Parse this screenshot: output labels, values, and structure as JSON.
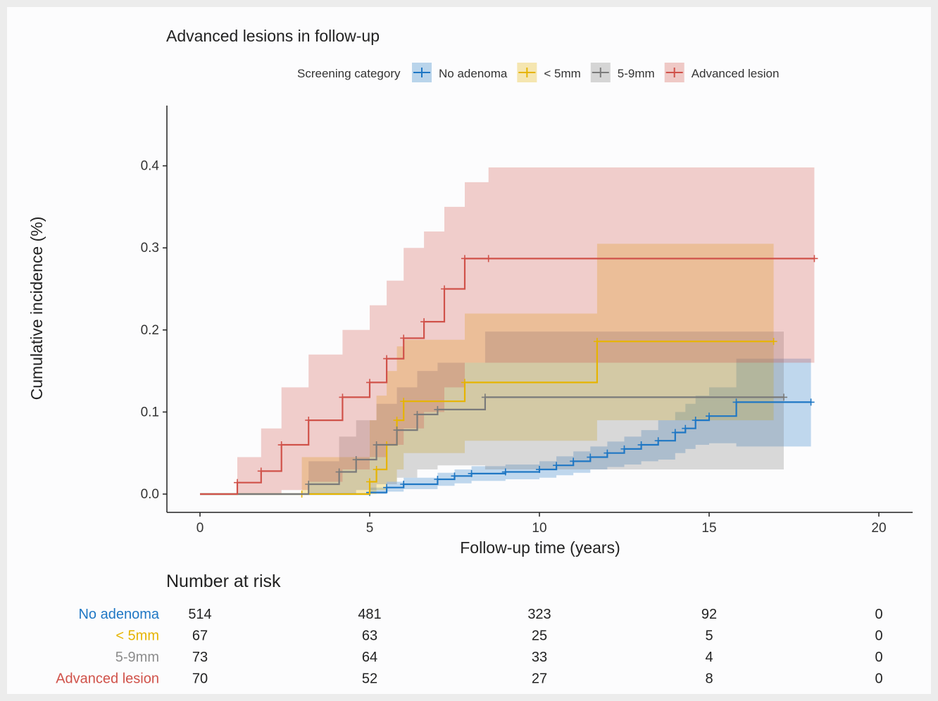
{
  "chart_data": {
    "type": "line",
    "title": "Advanced lesions in follow-up",
    "xlabel": "Follow-up time (years)",
    "ylabel": "Cumulative incidence (%)",
    "xlim": [
      0,
      20
    ],
    "ylim": [
      0,
      0.45
    ],
    "x_ticks": [
      0,
      5,
      10,
      15,
      20
    ],
    "y_ticks": [
      0.0,
      0.1,
      0.2,
      0.3,
      0.4
    ],
    "x_tick_labels": [
      "0",
      "5",
      "10",
      "15",
      "20"
    ],
    "y_tick_labels": [
      "0.0",
      "0.1",
      "0.2",
      "0.3",
      "0.4"
    ],
    "grid": false,
    "legend_title": "Screening category",
    "legend_position": "top",
    "series": [
      {
        "name": "No adenoma",
        "color": "#1f77c4",
        "x": [
          0,
          5.0,
          5.5,
          6.0,
          7.0,
          7.5,
          8.0,
          9.0,
          10.0,
          10.5,
          11.0,
          11.5,
          12.0,
          12.5,
          13.0,
          13.5,
          14.0,
          14.3,
          14.6,
          15.0,
          15.8,
          18.0
        ],
        "y": [
          0,
          0.002,
          0.008,
          0.012,
          0.018,
          0.022,
          0.025,
          0.027,
          0.03,
          0.035,
          0.04,
          0.045,
          0.05,
          0.055,
          0.06,
          0.065,
          0.075,
          0.08,
          0.09,
          0.095,
          0.112,
          0.112
        ],
        "ci_upper": [
          0,
          0.008,
          0.015,
          0.02,
          0.026,
          0.03,
          0.034,
          0.036,
          0.04,
          0.046,
          0.052,
          0.058,
          0.064,
          0.07,
          0.078,
          0.09,
          0.1,
          0.11,
          0.12,
          0.13,
          0.165,
          0.165
        ],
        "ci_lower": [
          0,
          0,
          0.003,
          0.006,
          0.01,
          0.013,
          0.016,
          0.018,
          0.02,
          0.023,
          0.026,
          0.03,
          0.033,
          0.036,
          0.04,
          0.042,
          0.05,
          0.055,
          0.06,
          0.062,
          0.058,
          0.058
        ]
      },
      {
        "name": "< 5mm",
        "color": "#e6b400",
        "x": [
          0,
          3.0,
          5.0,
          5.2,
          5.5,
          5.8,
          6.0,
          7.8,
          11.7,
          16.9
        ],
        "y": [
          0,
          0.0,
          0.015,
          0.03,
          0.06,
          0.09,
          0.113,
          0.136,
          0.186,
          0.186
        ],
        "ci_upper": [
          0,
          0.045,
          0.09,
          0.12,
          0.15,
          0.18,
          0.188,
          0.22,
          0.305,
          0.305
        ],
        "ci_lower": [
          0,
          0.0,
          0.0,
          0.005,
          0.015,
          0.03,
          0.05,
          0.065,
          0.09,
          0.09
        ]
      },
      {
        "name": "5-9mm",
        "color": "#7a7a7a",
        "x": [
          0,
          3.2,
          4.1,
          4.6,
          5.2,
          5.8,
          6.4,
          7.0,
          8.4,
          17.2
        ],
        "y": [
          0,
          0.012,
          0.027,
          0.042,
          0.06,
          0.078,
          0.097,
          0.103,
          0.118,
          0.118
        ],
        "ci_upper": [
          0,
          0.04,
          0.07,
          0.09,
          0.11,
          0.13,
          0.15,
          0.16,
          0.198,
          0.198
        ],
        "ci_lower": [
          0,
          0.0,
          0.0,
          0.005,
          0.012,
          0.02,
          0.03,
          0.035,
          0.03,
          0.03
        ]
      },
      {
        "name": "Advanced lesion",
        "color": "#d0524a",
        "x": [
          0,
          1.1,
          1.8,
          2.4,
          3.2,
          4.2,
          5.0,
          5.5,
          6.0,
          6.6,
          7.2,
          7.8,
          8.5,
          18.1
        ],
        "y": [
          0,
          0.014,
          0.028,
          0.06,
          0.09,
          0.118,
          0.136,
          0.165,
          0.19,
          0.21,
          0.25,
          0.287,
          0.287,
          0.287
        ],
        "ci_upper": [
          0,
          0.045,
          0.08,
          0.13,
          0.17,
          0.2,
          0.23,
          0.26,
          0.3,
          0.32,
          0.35,
          0.38,
          0.398,
          0.398
        ],
        "ci_lower": [
          0,
          0.0,
          0.0,
          0.005,
          0.015,
          0.03,
          0.045,
          0.06,
          0.08,
          0.1,
          0.13,
          0.16,
          0.16,
          0.16
        ]
      }
    ],
    "risk_table": {
      "title": "Number at risk",
      "times": [
        0,
        5,
        10,
        15,
        20
      ],
      "rows": [
        {
          "label": "No adenoma",
          "color": "#1f77c4",
          "values": [
            "514",
            "481",
            "323",
            "92",
            "0"
          ]
        },
        {
          "label": "< 5mm",
          "color": "#e6b400",
          "values": [
            "67",
            "63",
            "25",
            "5",
            "0"
          ]
        },
        {
          "label": "5-9mm",
          "color": "#8c8c8c",
          "values": [
            "73",
            "64",
            "33",
            "4",
            "0"
          ]
        },
        {
          "label": "Advanced lesion",
          "color": "#d0524a",
          "values": [
            "70",
            "52",
            "27",
            "8",
            "0"
          ]
        }
      ]
    }
  }
}
